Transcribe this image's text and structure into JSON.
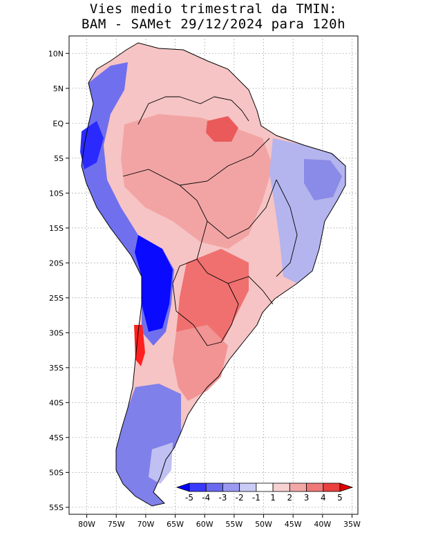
{
  "title": {
    "line1": "Vies medio trimestral da TMIN:",
    "line2": "BAM - SAMet 29/12/2024  para 120h"
  },
  "map": {
    "lat_ticks": [
      "10N",
      "5N",
      "EQ",
      "5S",
      "10S",
      "15S",
      "20S",
      "25S",
      "30S",
      "35S",
      "40S",
      "45S",
      "50S",
      "55S"
    ],
    "lon_ticks": [
      "80W",
      "75W",
      "70W",
      "65W",
      "60W",
      "55W",
      "50W",
      "45W",
      "40W",
      "35W"
    ],
    "grid": "dotted",
    "projection": "lat-lon",
    "lon_range": [
      -83,
      -34
    ],
    "lat_range": [
      12.5,
      -56
    ]
  },
  "colorbar": {
    "labels": [
      "-5",
      "-4",
      "-3",
      "-2",
      "-1",
      "1",
      "2",
      "3",
      "4",
      "5"
    ],
    "colors": [
      "#0000ff",
      "#3a3aff",
      "#6a6af0",
      "#9a9af0",
      "#cbcbf6",
      "#ffffff",
      "#f7d2d2",
      "#f2a8a8",
      "#f07878",
      "#ea4040",
      "#e00000"
    ],
    "placement": "bottom-right-inset"
  },
  "regions": [
    {
      "name": "amazon-warm",
      "color": "#f2a0a0"
    },
    {
      "name": "paraguay-warm",
      "color": "#f07070"
    },
    {
      "name": "andes-cold",
      "color": "#1010ff"
    },
    {
      "name": "northeast-cold",
      "color": "#b0b0f0"
    },
    {
      "name": "patagonia-cold",
      "color": "#7a7ae8"
    }
  ]
}
